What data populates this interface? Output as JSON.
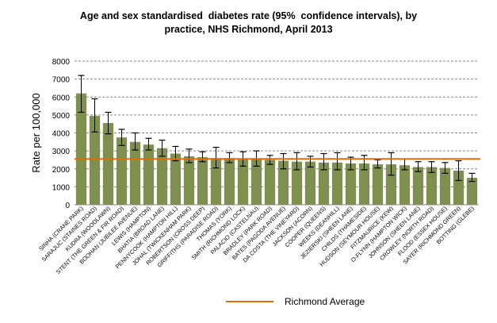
{
  "chart_data": {
    "type": "bar",
    "title_lines": [
      "Age and sex standardised  diabetes rate (95%  confidence intervals), by",
      "practice, NHS Richmond, April 2013"
    ],
    "ylabel": "Rate per 100,000",
    "xlabel": "",
    "ylim": [
      0,
      8000
    ],
    "yticks": [
      0,
      1000,
      2000,
      3000,
      4000,
      5000,
      6000,
      7000,
      8000
    ],
    "grid": true,
    "legend_position": "bottom",
    "reference_line": {
      "name": "Richmond Average",
      "value": 2550,
      "color": "#e36c09"
    },
    "bar_color": "#7f8f4e",
    "categories": [
      "SINHA (CRANE PARK)",
      "SARAJUC (STAINES ROAD)",
      "KUDRA (WOODLAWN)",
      "STENT (THE GREEN & FIR ROAD)",
      "BOOHAN (JUBILEE AVENUE)",
      "LEWIS (HAMPTON)",
      "BHATIA (BROAD LANE)",
      "PENNYCOOK (HAMPTON HILL)",
      "JOHAL (TWICKENHAM PARK)",
      "ROBERTSON (CROSS DEEP)",
      "GRIFFITHS (PARADISE ROAD)",
      "THOMAS (YORK)",
      "SMITH (RICHMOND LOCK)",
      "PALACIO (CASTELNAU)",
      "BRADLEY (PARK ROAD)",
      "BATES (PAGODA AVENUE)",
      "DA COSTA (THE VINEYARD)",
      "JACKSON (ACORN)",
      "COOPER (QUEENS)",
      "WEEKS (DEANHILL)",
      "JEZIERSKI (SHEEN LANE)",
      "CHILDS (THAMESIDE)",
      "HUDSON (SEYMOUR HOUSE)",
      "FITZMAURICE (KEW)",
      "O-FLYNN (HAMPTON WICK)",
      "JOHNSON (SHEEN LANE)",
      "CROWLEY (NORTH ROAD)",
      "FLOOD (ESSEX HOUSE)",
      "SAYER (RICHMOND GREEN)",
      "BOTTING (GLEBE)"
    ],
    "values": [
      6200,
      4950,
      4550,
      3750,
      3500,
      3350,
      3150,
      2850,
      2700,
      2650,
      2600,
      2600,
      2550,
      2550,
      2500,
      2450,
      2400,
      2400,
      2350,
      2350,
      2300,
      2300,
      2250,
      2250,
      2200,
      2100,
      2100,
      2050,
      1900,
      1500
    ],
    "ci_low": [
      5150,
      4050,
      3950,
      3300,
      3050,
      3050,
      2700,
      2450,
      2350,
      2400,
      2050,
      2350,
      2150,
      2150,
      2250,
      2000,
      1950,
      2100,
      1950,
      1950,
      1950,
      1950,
      2050,
      1650,
      1950,
      1850,
      1800,
      1750,
      1350,
      1300
    ],
    "ci_high": [
      7200,
      5900,
      5150,
      4200,
      4000,
      3700,
      3600,
      3250,
      3100,
      2950,
      3200,
      2900,
      2950,
      3000,
      2750,
      2850,
      2900,
      2700,
      2850,
      2900,
      2650,
      2750,
      2500,
      2900,
      2550,
      2400,
      2400,
      2350,
      2450,
      1750
    ]
  }
}
